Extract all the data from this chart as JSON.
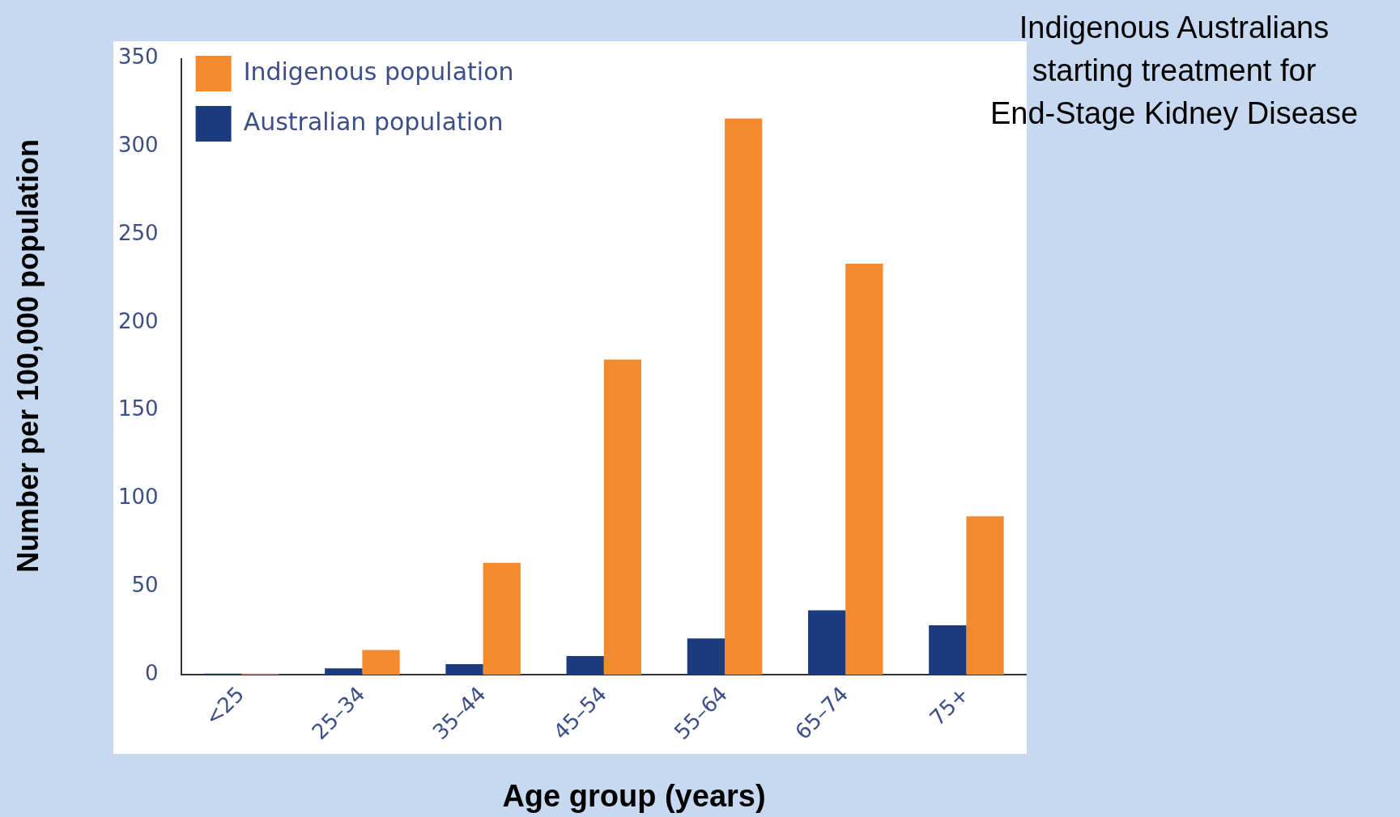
{
  "chart_data": {
    "type": "bar",
    "title": "Indigenous Australians\nstarting treatment for\nEnd-Stage Kidney Disease",
    "xlabel": "Age group (years)",
    "ylabel": "Number per 100,000 population",
    "categories": [
      "<25",
      "25–34",
      "35–44",
      "45–54",
      "55–64",
      "65–74",
      "75+"
    ],
    "series": [
      {
        "name": "Australian population",
        "color": "#1b3a7f",
        "values": [
          0.5,
          3.5,
          6,
          10.5,
          20.5,
          36.5,
          28
        ]
      },
      {
        "name": "Indigenous population",
        "color": "#f38b2e",
        "values": [
          0.5,
          14,
          63.5,
          179,
          316,
          233.5,
          90
        ]
      }
    ],
    "ylim": [
      0,
      350
    ],
    "yticks": [
      0,
      50,
      100,
      150,
      200,
      250,
      300,
      350
    ],
    "grid": false,
    "legend": "top left"
  }
}
